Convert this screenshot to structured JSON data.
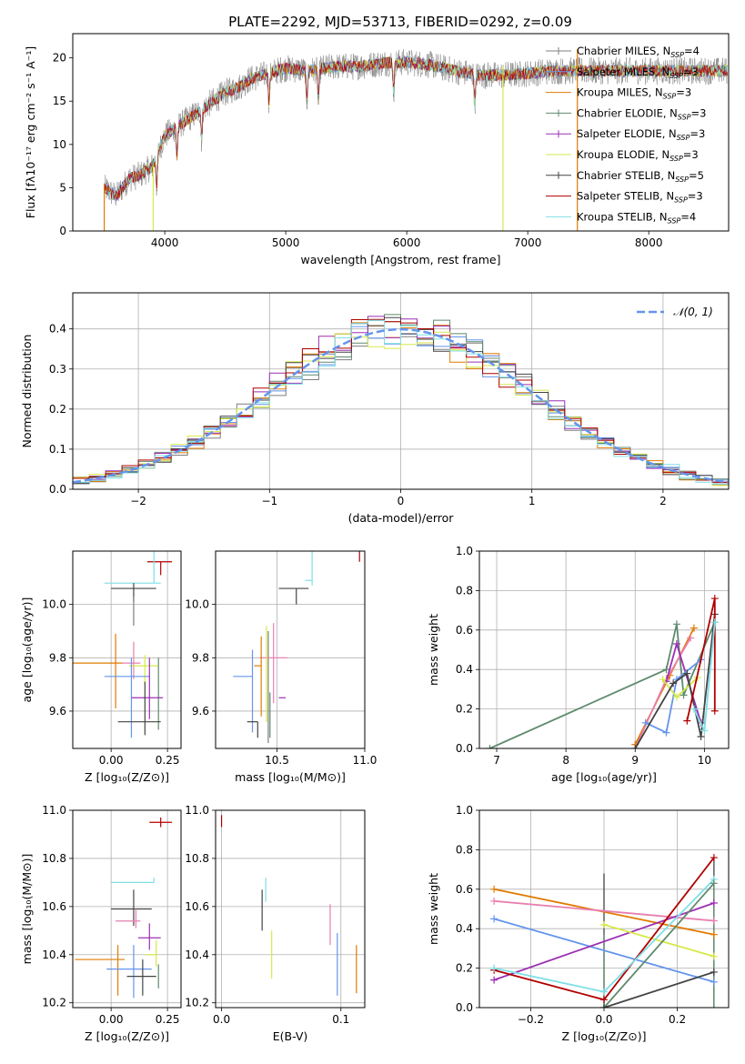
{
  "figure_title": "PLATE=2292, MJD=53713, FIBERID=0292, z=0.09",
  "colors": [
    "#7f7f7f",
    "#6495ED",
    "#e07b00",
    "#5f8a6e",
    "#9b30b3",
    "#d7e84a",
    "#444444",
    "#b00000",
    "#7fdfe6",
    "#e87fb0"
  ],
  "chart_data": [
    {
      "id": "spectrum",
      "type": "line",
      "xlabel": "wavelength [Angstrom, rest frame]",
      "ylabel": "Flux [fλ10⁻¹⁷ erg cm⁻² s⁻¹ A⁻¹]",
      "xlim": [
        3240,
        8660
      ],
      "ylim": [
        0,
        22.8
      ],
      "xticks": [
        4000,
        5000,
        6000,
        7000,
        8000
      ],
      "yticks": [
        0,
        5,
        10,
        15,
        20
      ],
      "grid": false,
      "legend_position": "top-right",
      "series": [
        {
          "name": "Chabrier MILES, N_SSP=4",
          "color": "#7f7f7f"
        },
        {
          "name": "Salpeter MILES, N_SSP=3",
          "color": "#6495ED"
        },
        {
          "name": "Kroupa MILES, N_SSP=3",
          "color": "#e07b00"
        },
        {
          "name": "Chabrier ELODIE, N_SSP=3",
          "color": "#5f8a6e"
        },
        {
          "name": "Salpeter ELODIE, N_SSP=3",
          "color": "#9b30b3"
        },
        {
          "name": "Kroupa ELODIE, N_SSP=3",
          "color": "#d7e84a"
        },
        {
          "name": "Chabrier STELIB, N_SSP=5",
          "color": "#444444"
        },
        {
          "name": "Salpeter STELIB, N_SSP=3",
          "color": "#b00000"
        },
        {
          "name": "Kroupa STELIB, N_SSP=4",
          "color": "#7fdfe6"
        }
      ],
      "continuum": {
        "x": [
          3500,
          3600,
          3700,
          3800,
          3900,
          4000,
          4100,
          4200,
          4300,
          4400,
          4500,
          4600,
          4700,
          4800,
          5000,
          5200,
          5400,
          5600,
          5800,
          6000,
          6200,
          6400,
          6600,
          6800,
          7000,
          7200,
          7400
        ],
        "y": [
          5,
          4,
          6,
          6.5,
          7.5,
          11,
          12,
          13,
          14,
          15,
          16,
          16.5,
          17.5,
          18,
          18.8,
          18.5,
          19,
          19,
          19.4,
          19.5,
          19.2,
          18.5,
          18,
          18,
          18.2,
          18.5,
          18.5
        ]
      },
      "absorption_lines": [
        3934,
        4101,
        4305,
        4862,
        5175,
        5270,
        5892,
        6563
      ],
      "spikes": [
        {
          "x": 3500,
          "top": 5.5,
          "color": "#e07b00"
        },
        {
          "x": 3905,
          "top": 7.5,
          "color": "#d7e84a"
        },
        {
          "x": 6795,
          "top": 19,
          "color": "#d7e84a"
        },
        {
          "x": 7410,
          "top": 21,
          "color": "#e07b00"
        }
      ]
    },
    {
      "id": "residuals",
      "type": "histogram",
      "xlabel": "(data-model)/error",
      "ylabel": "Normed distribution",
      "xlim": [
        -2.5,
        2.5
      ],
      "ylim": [
        0,
        0.49
      ],
      "xticks": [
        -2,
        -1,
        0,
        1,
        2
      ],
      "yticks": [
        0.0,
        0.1,
        0.2,
        0.3,
        0.4
      ],
      "grid": true,
      "legend_position": "top-right",
      "reference_curve": {
        "name": "N(0,1)",
        "label_math": "𝒩(0, 1)",
        "color": "#6495ED"
      },
      "bin_width": 0.125
    },
    {
      "id": "age_vs_Z",
      "type": "errorbar",
      "xlabel": "Z [log₁₀(Z/Z⊙)]",
      "ylabel": "age  [log₁₀(age/yr)]",
      "xlim": [
        -0.17,
        0.31
      ],
      "ylim": [
        9.46,
        10.2
      ],
      "xticks": [
        0.0,
        0.25
      ],
      "yticks": [
        9.6,
        9.8,
        10.0
      ],
      "grid": true,
      "points": [
        {
          "x": 0.22,
          "y": 10.16,
          "xerr": [
            0.06,
            0.05
          ],
          "yerr": [
            0.05,
            0.0
          ],
          "color": "#b00000"
        },
        {
          "x": 0.1,
          "y": 10.08,
          "xerr": [
            0.13,
            0.12
          ],
          "yerr": [
            0.0,
            0.0
          ],
          "color": "#7fdfe6"
        },
        {
          "x": 0.19,
          "y": 10.08,
          "xerr": [
            0.0,
            0.0
          ],
          "yerr": [
            0.0,
            0.15
          ],
          "color": "#7fdfe6"
        },
        {
          "x": 0.1,
          "y": 10.06,
          "xerr": [
            0.1,
            0.1
          ],
          "yerr": [
            0.05,
            0.02
          ],
          "color": "#444444"
        },
        {
          "x": 0.1,
          "y": 9.95,
          "xerr": [
            0.0,
            0.0
          ],
          "yerr": [
            0.03,
            0.08
          ],
          "color": "#7f7f7f"
        },
        {
          "x": 0.02,
          "y": 9.78,
          "xerr": [
            0.2,
            0.03
          ],
          "yerr": [
            0.17,
            0.11
          ],
          "color": "#e07b00"
        },
        {
          "x": 0.1,
          "y": 9.78,
          "xerr": [
            0.05,
            0.03
          ],
          "yerr": [
            0.06,
            0.08
          ],
          "color": "#e87fb0"
        },
        {
          "x": 0.15,
          "y": 9.77,
          "xerr": [
            0.07,
            0.06
          ],
          "yerr": [
            0.07,
            0.04
          ],
          "color": "#d7e84a"
        },
        {
          "x": 0.21,
          "y": 9.7,
          "xerr": [
            0.0,
            0.0
          ],
          "yerr": [
            0.17,
            0.1
          ],
          "color": "#5f8a6e"
        },
        {
          "x": 0.09,
          "y": 9.73,
          "xerr": [
            0.12,
            0.08
          ],
          "yerr": [
            0.23,
            0.07
          ],
          "color": "#6495ED"
        },
        {
          "x": 0.17,
          "y": 9.65,
          "xerr": [
            0.08,
            0.06
          ],
          "yerr": [
            0.08,
            0.15
          ],
          "color": "#9b30b3"
        },
        {
          "x": 0.15,
          "y": 9.56,
          "xerr": [
            0.12,
            0.07
          ],
          "yerr": [
            0.05,
            0.15
          ],
          "color": "#444444"
        }
      ]
    },
    {
      "id": "age_vs_mass",
      "type": "errorbar",
      "xlabel": "mass [log₁₀(M/M⊙)]",
      "ylabel": "",
      "xlim": [
        10.15,
        11.0
      ],
      "ylim": [
        9.46,
        10.2
      ],
      "xticks": [
        10.5,
        11.0
      ],
      "yticks": [
        9.6,
        9.8,
        10.0
      ],
      "grid": true,
      "points": [
        {
          "x": 10.97,
          "y": 10.16,
          "xerr": [
            0.0,
            0.0
          ],
          "yerr": [
            0.0,
            0.06
          ],
          "color": "#b00000"
        },
        {
          "x": 10.7,
          "y": 10.09,
          "xerr": [
            0.04,
            0.0
          ],
          "yerr": [
            0.02,
            0.15
          ],
          "color": "#7fdfe6"
        },
        {
          "x": 10.61,
          "y": 10.06,
          "xerr": [
            0.1,
            0.07
          ],
          "yerr": [
            0.06,
            0.0
          ],
          "color": "#444444"
        },
        {
          "x": 10.45,
          "y": 9.75,
          "xerr": [
            0.0,
            0.0
          ],
          "yerr": [
            0.27,
            0.15
          ],
          "color": "#7f7f7f"
        },
        {
          "x": 10.48,
          "y": 9.8,
          "xerr": [
            0.08,
            0.08
          ],
          "yerr": [
            0.17,
            0.13
          ],
          "color": "#e87fb0"
        },
        {
          "x": 10.41,
          "y": 9.77,
          "xerr": [
            0.04,
            0.0
          ],
          "yerr": [
            0.19,
            0.11
          ],
          "color": "#e07b00"
        },
        {
          "x": 10.44,
          "y": 9.78,
          "xerr": [
            0.0,
            0.0
          ],
          "yerr": [
            0.22,
            0.14
          ],
          "color": "#d7e84a"
        },
        {
          "x": 10.36,
          "y": 9.73,
          "xerr": [
            0.11,
            0.0
          ],
          "yerr": [
            0.21,
            0.1
          ],
          "color": "#6495ED"
        },
        {
          "x": 10.55,
          "y": 9.65,
          "xerr": [
            0.04,
            0.0
          ],
          "yerr": [
            0.0,
            0.0
          ],
          "color": "#9b30b3"
        },
        {
          "x": 10.39,
          "y": 9.56,
          "xerr": [
            0.06,
            0.0
          ],
          "yerr": [
            0.06,
            0.0
          ],
          "color": "#444444"
        },
        {
          "x": 10.46,
          "y": 9.6,
          "xerr": [
            0.0,
            0.0
          ],
          "yerr": [
            0.1,
            0.07
          ],
          "color": "#5f8a6e"
        }
      ]
    },
    {
      "id": "mass_weight_vs_age",
      "type": "line",
      "xlabel": "age  [log₁₀(age/yr)]",
      "ylabel": "mass weight",
      "xlim": [
        6.75,
        10.35
      ],
      "ylim": [
        0.0,
        1.0
      ],
      "xticks": [
        7,
        8,
        9,
        10
      ],
      "yticks": [
        0.0,
        0.2,
        0.4,
        0.6,
        0.8,
        1.0
      ],
      "grid": true,
      "series": [
        {
          "color": "#5f8a6e",
          "x": [
            6.9,
            9.45,
            9.6,
            9.7,
            10.15
          ],
          "y": [
            0.0,
            0.4,
            0.63,
            0.27,
            0.64
          ]
        },
        {
          "color": "#e07b00",
          "x": [
            9.0,
            9.5,
            9.85
          ],
          "y": [
            0.02,
            0.37,
            0.61
          ]
        },
        {
          "color": "#e87fb0",
          "x": [
            9.0,
            9.45,
            9.8
          ],
          "y": [
            0.0,
            0.35,
            0.56
          ]
        },
        {
          "color": "#9b30b3",
          "x": [
            9.45,
            9.6,
            9.95
          ],
          "y": [
            0.34,
            0.53,
            0.13
          ]
        },
        {
          "color": "#6495ED",
          "x": [
            9.15,
            9.45,
            9.6,
            9.95
          ],
          "y": [
            0.13,
            0.08,
            0.35,
            0.45
          ]
        },
        {
          "color": "#d7e84a",
          "x": [
            9.4,
            9.6,
            9.9
          ],
          "y": [
            0.35,
            0.26,
            0.36
          ]
        },
        {
          "color": "#444444",
          "x": [
            9.0,
            9.55,
            9.75,
            9.95,
            10.15
          ],
          "y": [
            0.0,
            0.33,
            0.38,
            0.06,
            0.68
          ]
        },
        {
          "color": "#b00000",
          "x": [
            9.75,
            10.15,
            10.15
          ],
          "y": [
            0.14,
            0.76,
            0.19
          ]
        },
        {
          "color": "#7fdfe6",
          "x": [
            9.85,
            10.0,
            10.15
          ],
          "y": [
            0.2,
            0.09,
            0.64
          ]
        }
      ]
    },
    {
      "id": "mass_vs_Z",
      "type": "errorbar",
      "xlabel": "Z [log₁₀(Z/Z⊙)]",
      "ylabel": "mass [log₁₀(M/M⊙)]",
      "xlim": [
        -0.17,
        0.31
      ],
      "ylim": [
        10.18,
        11.0
      ],
      "xticks": [
        0.0,
        0.25
      ],
      "yticks": [
        10.2,
        10.4,
        10.6,
        10.8,
        11.0
      ],
      "grid": true,
      "points": [
        {
          "x": 0.22,
          "y": 10.95,
          "xerr": [
            0.05,
            0.05
          ],
          "yerr": [
            0.02,
            0.02
          ],
          "color": "#b00000"
        },
        {
          "x": 0.19,
          "y": 10.7,
          "xerr": [
            0.19,
            0.0
          ],
          "yerr": [
            0.0,
            0.02
          ],
          "color": "#7fdfe6"
        },
        {
          "x": 0.1,
          "y": 10.59,
          "xerr": [
            0.1,
            0.08
          ],
          "yerr": [
            0.07,
            0.08
          ],
          "color": "#444444"
        },
        {
          "x": 0.11,
          "y": 10.54,
          "xerr": [
            0.09,
            0.02
          ],
          "yerr": [
            0.03,
            0.05
          ],
          "color": "#e87fb0"
        },
        {
          "x": 0.17,
          "y": 10.47,
          "xerr": [
            0.05,
            0.05
          ],
          "yerr": [
            0.05,
            0.06
          ],
          "color": "#9b30b3"
        },
        {
          "x": 0.2,
          "y": 10.4,
          "xerr": [
            0.05,
            0.0
          ],
          "yerr": [
            0.05,
            0.06
          ],
          "color": "#d7e84a"
        },
        {
          "x": 0.03,
          "y": 10.38,
          "xerr": [
            0.19,
            0.03
          ],
          "yerr": [
            0.15,
            0.06
          ],
          "color": "#e07b00"
        },
        {
          "x": 0.1,
          "y": 10.34,
          "xerr": [
            0.12,
            0.08
          ],
          "yerr": [
            0.12,
            0.1
          ],
          "color": "#6495ED"
        },
        {
          "x": 0.21,
          "y": 10.31,
          "xerr": [
            0.0,
            0.0
          ],
          "yerr": [
            0.05,
            0.05
          ],
          "color": "#5f8a6e"
        },
        {
          "x": 0.14,
          "y": 10.31,
          "xerr": [
            0.07,
            0.06
          ],
          "yerr": [
            0.08,
            0.07
          ],
          "color": "#444444"
        }
      ]
    },
    {
      "id": "mass_vs_EBV",
      "type": "errorbar",
      "xlabel": "E(B-V)",
      "ylabel": "",
      "xlim": [
        -0.005,
        0.12
      ],
      "ylim": [
        10.18,
        11.0
      ],
      "xticks": [
        0.0,
        0.1
      ],
      "yticks": [
        10.2,
        10.4,
        10.6,
        10.8,
        11.0
      ],
      "grid": true,
      "points": [
        {
          "x": 0.0,
          "y": 10.96,
          "xerr": [
            0.0,
            0.0
          ],
          "yerr": [
            0.03,
            0.02
          ],
          "color": "#b00000"
        },
        {
          "x": 0.037,
          "y": 10.64,
          "xerr": [
            0.0,
            0.0
          ],
          "yerr": [
            0.02,
            0.08
          ],
          "color": "#7fdfe6"
        },
        {
          "x": 0.034,
          "y": 10.57,
          "xerr": [
            0.0,
            0.0
          ],
          "yerr": [
            0.07,
            0.1
          ],
          "color": "#444444"
        },
        {
          "x": 0.042,
          "y": 10.43,
          "xerr": [
            0.0,
            0.0
          ],
          "yerr": [
            0.13,
            0.07
          ],
          "color": "#d7e84a"
        },
        {
          "x": 0.091,
          "y": 10.52,
          "xerr": [
            0.0,
            0.0
          ],
          "yerr": [
            0.08,
            0.09
          ],
          "color": "#e87fb0"
        },
        {
          "x": 0.097,
          "y": 10.36,
          "xerr": [
            0.0,
            0.0
          ],
          "yerr": [
            0.13,
            0.13
          ],
          "color": "#6495ED"
        },
        {
          "x": 0.113,
          "y": 10.34,
          "xerr": [
            0.0,
            0.0
          ],
          "yerr": [
            0.1,
            0.1
          ],
          "color": "#e07b00"
        }
      ]
    },
    {
      "id": "mass_weight_vs_Z",
      "type": "line",
      "xlabel": "Z [log₁₀(Z/Z⊙)]",
      "ylabel": "mass weight",
      "xlim": [
        -0.34,
        0.34
      ],
      "ylim": [
        0.0,
        1.0
      ],
      "xticks": [
        -0.2,
        0.0,
        0.2
      ],
      "yticks": [
        0.0,
        0.2,
        0.4,
        0.6,
        0.8,
        1.0
      ],
      "grid": true,
      "series": [
        {
          "color": "#e07b00",
          "x": [
            -0.3,
            0.3
          ],
          "y": [
            0.6,
            0.37
          ]
        },
        {
          "color": "#e87fb0",
          "x": [
            -0.3,
            0.3
          ],
          "y": [
            0.54,
            0.44
          ]
        },
        {
          "color": "#6495ED",
          "x": [
            -0.3,
            0.3
          ],
          "y": [
            0.45,
            0.13
          ]
        },
        {
          "color": "#9b30b3",
          "x": [
            -0.3,
            0.3
          ],
          "y": [
            0.14,
            0.53
          ]
        },
        {
          "color": "#d7e84a",
          "x": [
            0.0,
            0.3
          ],
          "y": [
            0.42,
            0.26
          ]
        },
        {
          "color": "#b00000",
          "x": [
            -0.3,
            0.0,
            0.3
          ],
          "y": [
            0.19,
            0.04,
            0.76
          ]
        },
        {
          "color": "#7fdfe6",
          "x": [
            -0.3,
            0.0,
            0.3
          ],
          "y": [
            0.2,
            0.08,
            0.65
          ]
        },
        {
          "color": "#5f8a6e",
          "x": [
            0.0,
            0.3
          ],
          "y": [
            0.0,
            0.63
          ]
        },
        {
          "color": "#444444",
          "x": [
            0.0,
            0.3
          ],
          "y": [
            0.0,
            0.18
          ]
        }
      ],
      "vertical_bars": [
        {
          "x": 0.0,
          "y0": 0.0,
          "y1": 0.68,
          "color": "#444444"
        },
        {
          "x": 0.0,
          "y0": 0.0,
          "y1": 0.37,
          "color": "#5f8a6e"
        },
        {
          "x": 0.3,
          "y0": 0.0,
          "y1": 0.76,
          "color": "#444444"
        },
        {
          "x": 0.3,
          "y0": 0.0,
          "y1": 0.63,
          "color": "#5f8a6e"
        }
      ]
    }
  ]
}
